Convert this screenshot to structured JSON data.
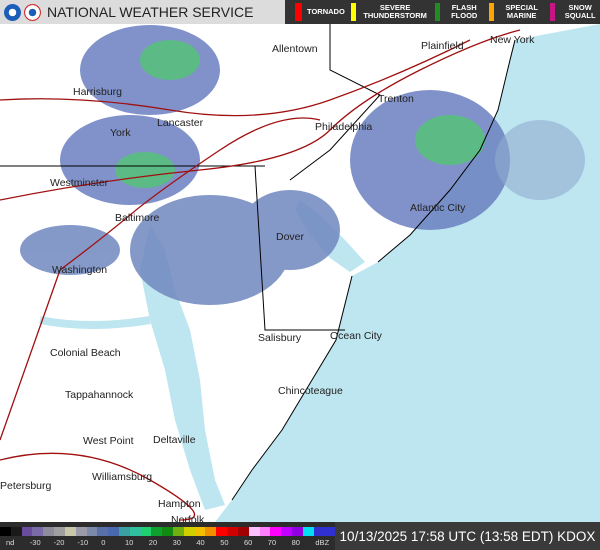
{
  "header": {
    "title": "NATIONAL WEATHER SERVICE",
    "logos": [
      "noaa-logo",
      "nws-logo"
    ]
  },
  "alerts": [
    {
      "label": "TORNADO",
      "color": "#ff0000"
    },
    {
      "label": "SEVERE THUNDERSTORM",
      "color": "#ffff00"
    },
    {
      "label": "FLASH FLOOD",
      "color": "#228b22"
    },
    {
      "label": "SPECIAL MARINE",
      "color": "#ffa500"
    },
    {
      "label": "SNOW SQUALL",
      "color": "#c71585"
    }
  ],
  "cities": [
    {
      "name": "Allentown"
    },
    {
      "name": "Plainfield"
    },
    {
      "name": "New York"
    },
    {
      "name": "Harrisburg"
    },
    {
      "name": "Trenton"
    },
    {
      "name": "York"
    },
    {
      "name": "Lancaster"
    },
    {
      "name": "Philadelphia"
    },
    {
      "name": "Westminster"
    },
    {
      "name": "Atlantic City"
    },
    {
      "name": "Baltimore"
    },
    {
      "name": "Dover"
    },
    {
      "name": "Washington"
    },
    {
      "name": "Salisbury"
    },
    {
      "name": "Ocean City"
    },
    {
      "name": "Colonial Beach"
    },
    {
      "name": "Tappahannock"
    },
    {
      "name": "Chincoteague"
    },
    {
      "name": "West Point"
    },
    {
      "name": "Deltaville"
    },
    {
      "name": "Williamsburg"
    },
    {
      "name": "Petersburg"
    },
    {
      "name": "Hampton"
    },
    {
      "name": "Norfolk"
    }
  ],
  "legend": {
    "labels": [
      "nd",
      "-30",
      "-20",
      "-10",
      "0",
      "10",
      "20",
      "30",
      "40",
      "50",
      "60",
      "70",
      "80",
      "dBZ"
    ],
    "colors": [
      "#000000",
      "#1a1a1a",
      "#6a4c9c",
      "#7b6aa8",
      "#8c8c9c",
      "#a0a0a0",
      "#c8c8a8",
      "#9a9aa8",
      "#7a8aa8",
      "#5a70a8",
      "#4a6ab0",
      "#3aa0a0",
      "#30c0a0",
      "#20d070",
      "#10a030",
      "#108a10",
      "#70b010",
      "#d0d000",
      "#f0c000",
      "#f09000",
      "#ff0000",
      "#d00000",
      "#a00000",
      "#ffc0ff",
      "#ff80ff",
      "#ff00ff",
      "#c000ff",
      "#9000e0",
      "#00e0f0",
      "#3030d0",
      "#3030d0"
    ]
  },
  "timestamp": "10/13/2025 17:58 UTC (13:58 EDT) KDOX",
  "colors": {
    "ocean": "#bde6f0",
    "land": "#ffffff",
    "roads": "#a01010"
  }
}
